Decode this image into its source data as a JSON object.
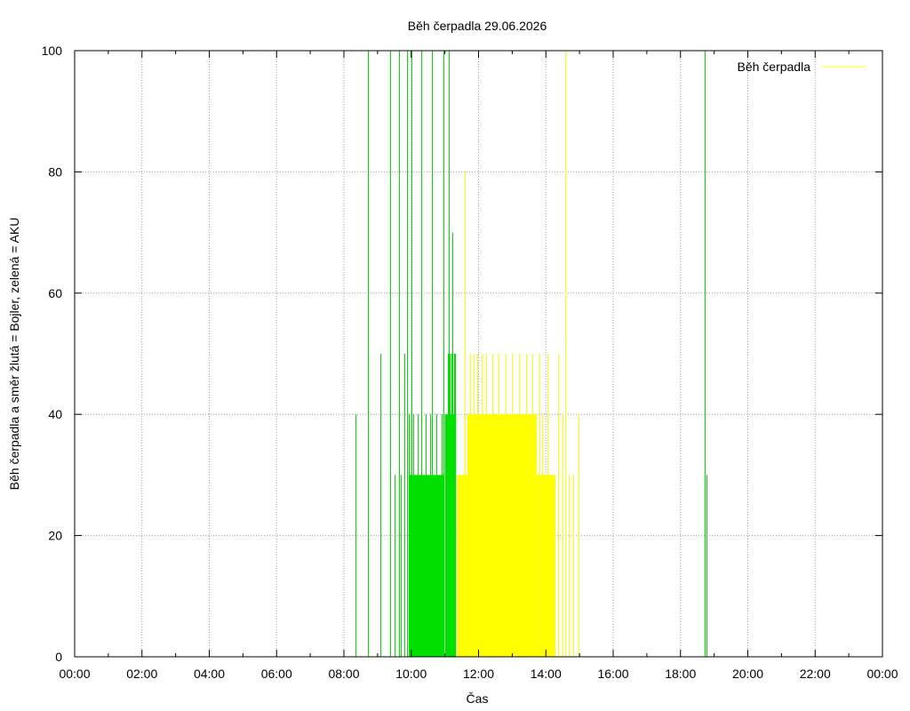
{
  "chart_data": {
    "type": "bar",
    "title": "Běh čerpadla 29.06.2026",
    "xlabel": "Čas",
    "ylabel": "Běh čerpadla a směr žlutá = Bojler, zelená = AKU",
    "xlim": [
      "00:00",
      "24:00"
    ],
    "ylim": [
      0,
      100
    ],
    "x_ticks": [
      "00:00",
      "02:00",
      "04:00",
      "06:00",
      "08:00",
      "10:00",
      "12:00",
      "14:00",
      "16:00",
      "18:00",
      "20:00",
      "22:00",
      "00:00"
    ],
    "y_ticks": [
      "0",
      "20",
      "40",
      "60",
      "80",
      "100"
    ],
    "grid": true,
    "legend_position": "top-right",
    "legend": [
      {
        "label": "Běh čerpadla",
        "color": "#ffff00"
      }
    ],
    "series": [
      {
        "name": "AKU",
        "color": "#00e000",
        "spikes": [
          [
            "08:20",
            40
          ],
          [
            "08:43",
            100
          ],
          [
            "09:05",
            50
          ],
          [
            "09:22",
            100
          ],
          [
            "09:30",
            30
          ],
          [
            "09:38",
            100
          ],
          [
            "09:42",
            30
          ],
          [
            "09:48",
            50
          ],
          [
            "09:53",
            100
          ],
          [
            "09:56",
            40
          ],
          [
            "10:00",
            100
          ],
          [
            "10:03",
            40
          ],
          [
            "10:08",
            30
          ],
          [
            "10:12",
            40
          ],
          [
            "10:15",
            30
          ],
          [
            "10:18",
            100
          ],
          [
            "10:22",
            30
          ],
          [
            "10:26",
            40
          ],
          [
            "10:30",
            30
          ],
          [
            "10:33",
            40
          ],
          [
            "10:37",
            100
          ],
          [
            "10:41",
            30
          ],
          [
            "10:45",
            40
          ],
          [
            "10:52",
            30
          ],
          [
            "10:55",
            40
          ],
          [
            "10:58",
            100
          ],
          [
            "11:02",
            30
          ],
          [
            "11:05",
            50
          ],
          [
            "11:07",
            100
          ],
          [
            "11:09",
            50
          ],
          [
            "11:12",
            50
          ],
          [
            "11:14",
            70
          ],
          [
            "11:16",
            50
          ],
          [
            "11:18",
            50
          ],
          [
            "18:43",
            100
          ],
          [
            "18:46",
            30
          ]
        ],
        "blocks": [
          {
            "start": "09:56",
            "end": "10:58",
            "value": 30
          },
          {
            "start": "11:00",
            "end": "11:20",
            "value": 40
          }
        ]
      },
      {
        "name": "Bojler",
        "color": "#ffff00",
        "spikes": [
          [
            "11:35",
            80
          ],
          [
            "11:38",
            30
          ],
          [
            "11:42",
            40
          ],
          [
            "11:45",
            50
          ],
          [
            "11:48",
            40
          ],
          [
            "11:52",
            50
          ],
          [
            "11:55",
            40
          ],
          [
            "11:58",
            50
          ],
          [
            "12:02",
            40
          ],
          [
            "12:06",
            50
          ],
          [
            "12:10",
            40
          ],
          [
            "12:14",
            50
          ],
          [
            "12:20",
            40
          ],
          [
            "12:24",
            50
          ],
          [
            "12:30",
            40
          ],
          [
            "12:36",
            50
          ],
          [
            "12:42",
            40
          ],
          [
            "12:48",
            50
          ],
          [
            "12:54",
            40
          ],
          [
            "13:00",
            50
          ],
          [
            "13:06",
            40
          ],
          [
            "13:12",
            50
          ],
          [
            "13:18",
            40
          ],
          [
            "13:24",
            50
          ],
          [
            "13:30",
            40
          ],
          [
            "13:36",
            50
          ],
          [
            "13:42",
            40
          ],
          [
            "13:48",
            50
          ],
          [
            "13:54",
            40
          ],
          [
            "14:03",
            50
          ],
          [
            "14:07",
            30
          ],
          [
            "14:13",
            30
          ],
          [
            "14:22",
            50
          ],
          [
            "14:30",
            40
          ],
          [
            "14:35",
            100
          ],
          [
            "14:40",
            30
          ],
          [
            "14:48",
            30
          ],
          [
            "14:58",
            40
          ]
        ],
        "blocks": [
          {
            "start": "11:22",
            "end": "11:40",
            "value": 30
          },
          {
            "start": "11:40",
            "end": "13:42",
            "value": 40
          },
          {
            "start": "13:42",
            "end": "14:17",
            "value": 30
          }
        ]
      }
    ]
  }
}
